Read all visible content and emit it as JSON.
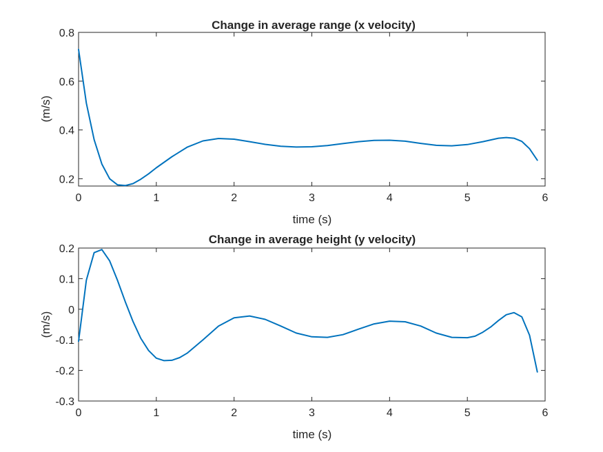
{
  "chart_data": [
    {
      "type": "line",
      "title": "Change in average range (x velocity)",
      "xlabel": "time (s)",
      "ylabel": "(m/s)",
      "xlim": [
        0,
        6
      ],
      "ylim": [
        0.17,
        0.8
      ],
      "xticks": [
        "0",
        "1",
        "2",
        "3",
        "4",
        "5",
        "6"
      ],
      "yticks": [
        "0.2",
        "0.4",
        "0.6",
        "0.8"
      ],
      "grid": false,
      "color": "#0072BD",
      "series": [
        {
          "x": [
            0,
            0.1,
            0.2,
            0.3,
            0.4,
            0.5,
            0.6,
            0.7,
            0.8,
            0.9,
            1.0,
            1.2,
            1.4,
            1.6,
            1.8,
            2.0,
            2.2,
            2.4,
            2.6,
            2.8,
            3.0,
            3.2,
            3.4,
            3.6,
            3.8,
            4.0,
            4.2,
            4.4,
            4.6,
            4.8,
            5.0,
            5.2,
            5.4,
            5.5,
            5.6,
            5.7,
            5.8,
            5.9
          ],
          "y": [
            0.73,
            0.51,
            0.36,
            0.26,
            0.2,
            0.175,
            0.172,
            0.18,
            0.198,
            0.22,
            0.245,
            0.29,
            0.33,
            0.355,
            0.365,
            0.362,
            0.352,
            0.341,
            0.333,
            0.33,
            0.331,
            0.336,
            0.344,
            0.352,
            0.357,
            0.358,
            0.354,
            0.345,
            0.337,
            0.335,
            0.34,
            0.352,
            0.366,
            0.369,
            0.366,
            0.353,
            0.323,
            0.276
          ]
        }
      ]
    },
    {
      "type": "line",
      "title": "Change in average height (y velocity)",
      "xlabel": "time (s)",
      "ylabel": "(m/s)",
      "xlim": [
        0,
        6
      ],
      "ylim": [
        -0.3,
        0.2
      ],
      "xticks": [
        "0",
        "1",
        "2",
        "3",
        "4",
        "5",
        "6"
      ],
      "yticks": [
        "-0.3",
        "-0.2",
        "-0.1",
        "0",
        "0.1",
        "0.2"
      ],
      "grid": false,
      "color": "#0072BD",
      "series": [
        {
          "x": [
            0,
            0.1,
            0.2,
            0.3,
            0.4,
            0.5,
            0.6,
            0.7,
            0.8,
            0.9,
            1.0,
            1.1,
            1.2,
            1.3,
            1.4,
            1.6,
            1.8,
            2.0,
            2.2,
            2.4,
            2.6,
            2.8,
            3.0,
            3.2,
            3.4,
            3.6,
            3.8,
            4.0,
            4.2,
            4.4,
            4.6,
            4.8,
            5.0,
            5.1,
            5.2,
            5.3,
            5.4,
            5.5,
            5.6,
            5.7,
            5.8,
            5.9
          ],
          "y": [
            -0.105,
            0.095,
            0.185,
            0.195,
            0.158,
            0.095,
            0.025,
            -0.04,
            -0.095,
            -0.135,
            -0.16,
            -0.168,
            -0.167,
            -0.158,
            -0.143,
            -0.1,
            -0.055,
            -0.028,
            -0.022,
            -0.033,
            -0.055,
            -0.078,
            -0.09,
            -0.092,
            -0.083,
            -0.065,
            -0.048,
            -0.039,
            -0.041,
            -0.055,
            -0.078,
            -0.092,
            -0.093,
            -0.088,
            -0.075,
            -0.058,
            -0.037,
            -0.018,
            -0.011,
            -0.025,
            -0.085,
            -0.205
          ]
        }
      ]
    }
  ]
}
